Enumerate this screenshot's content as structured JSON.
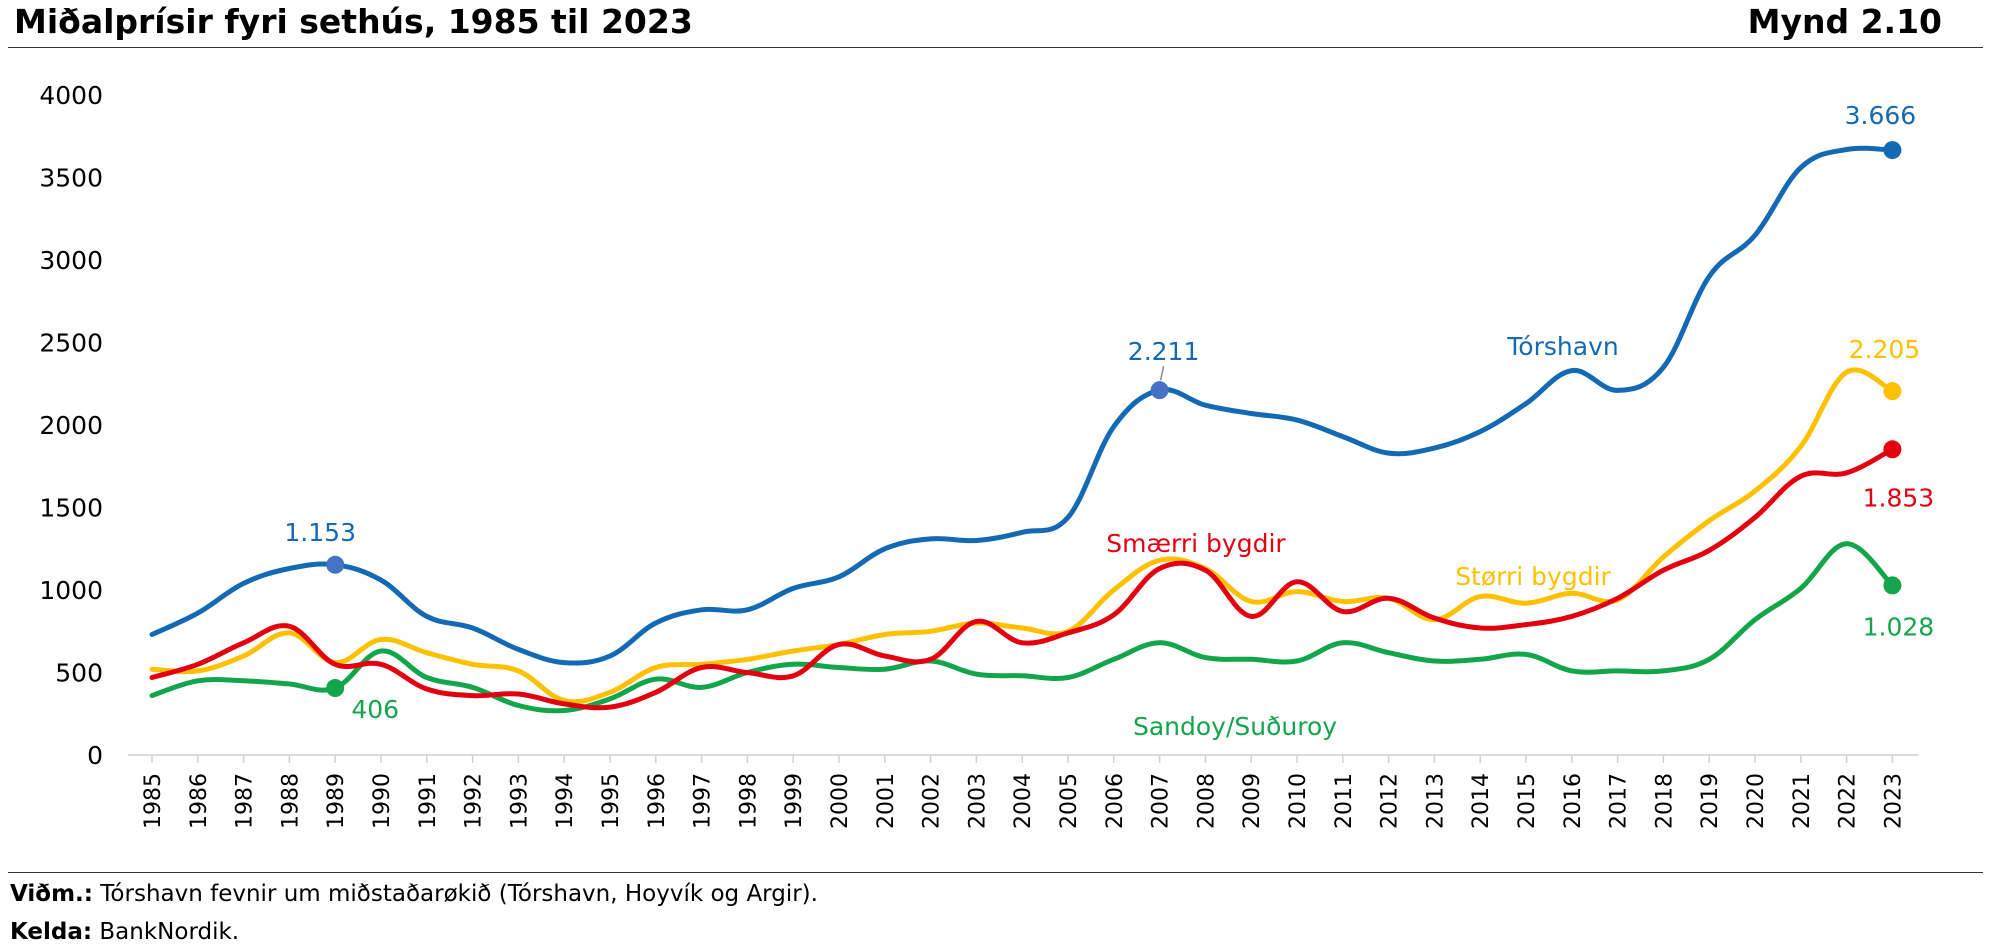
{
  "header": {
    "title": "Miðalprísir fyri sethús, 1985 til 2023",
    "figure_number": "Mynd 2.10"
  },
  "notes": {
    "note_label": "Viðm.:",
    "note_text": " Tórshavn fevnir um miðstaðarøkið (Tórshavn, Hoyvík og Argir).",
    "source_label": "Kelda:",
    "source_text": " BankNordik."
  },
  "chart_data": {
    "type": "line",
    "title": "Miðalprísir fyri sethús, 1985 til 2023",
    "xlabel": "",
    "ylabel": "",
    "ylim": [
      0,
      4000
    ],
    "yticks": [
      "0",
      "500",
      "1000",
      "1500",
      "2000",
      "2500",
      "3000",
      "3500",
      "4000"
    ],
    "categories": [
      "1985",
      "1986",
      "1987",
      "1988",
      "1989",
      "1990",
      "1991",
      "1992",
      "1993",
      "1994",
      "1995",
      "1996",
      "1997",
      "1998",
      "1999",
      "2000",
      "2001",
      "2002",
      "2003",
      "2004",
      "2005",
      "2006",
      "2007",
      "2008",
      "2009",
      "2010",
      "2011",
      "2012",
      "2013",
      "2014",
      "2015",
      "2016",
      "2017",
      "2018",
      "2019",
      "2020",
      "2021",
      "2022",
      "2023"
    ],
    "grid": false,
    "series": [
      {
        "name": "Tórshavn",
        "color": "#1469B4",
        "values": [
          730,
          860,
          1040,
          1130,
          1153,
          1060,
          840,
          770,
          640,
          560,
          600,
          800,
          880,
          880,
          1010,
          1080,
          1250,
          1310,
          1300,
          1350,
          1440,
          1990,
          2211,
          2120,
          2070,
          2030,
          1930,
          1830,
          1860,
          1960,
          2130,
          2330,
          2210,
          2350,
          2900,
          3150,
          3560,
          3670,
          3666
        ],
        "markers": [
          {
            "year": "1989",
            "label": "1.153"
          },
          {
            "year": "2007",
            "label": "2.211"
          },
          {
            "year": "2023",
            "label": "3.666"
          }
        ]
      },
      {
        "name": "Størri bygdir",
        "color": "#FFC000",
        "values": [
          520,
          510,
          600,
          740,
          560,
          700,
          620,
          550,
          510,
          330,
          380,
          530,
          550,
          580,
          630,
          670,
          730,
          750,
          800,
          770,
          750,
          1000,
          1180,
          1130,
          930,
          990,
          930,
          950,
          820,
          960,
          920,
          980,
          940,
          1200,
          1420,
          1600,
          1870,
          2320,
          2205
        ],
        "markers": [
          {
            "year": "2023",
            "label": "2.205"
          }
        ]
      },
      {
        "name": "Smærri bygdir",
        "color": "#E3000F",
        "values": [
          470,
          550,
          680,
          780,
          550,
          550,
          400,
          360,
          370,
          310,
          290,
          380,
          530,
          500,
          480,
          670,
          600,
          580,
          810,
          680,
          740,
          850,
          1130,
          1120,
          840,
          1050,
          870,
          950,
          830,
          770,
          790,
          840,
          950,
          1120,
          1240,
          1440,
          1690,
          1710,
          1853
        ],
        "markers": [
          {
            "year": "2023",
            "label": "1.853"
          }
        ]
      },
      {
        "name": "Sandoy/Suðuroy",
        "color": "#13A54B",
        "values": [
          360,
          450,
          450,
          430,
          406,
          630,
          470,
          410,
          300,
          270,
          340,
          460,
          410,
          500,
          550,
          530,
          520,
          570,
          490,
          480,
          470,
          580,
          680,
          590,
          580,
          570,
          680,
          620,
          570,
          580,
          610,
          510,
          510,
          510,
          580,
          820,
          1010,
          1280,
          1028
        ],
        "markers": [
          {
            "year": "1989",
            "label": "406"
          },
          {
            "year": "2023",
            "label": "1.028"
          }
        ]
      }
    ]
  }
}
